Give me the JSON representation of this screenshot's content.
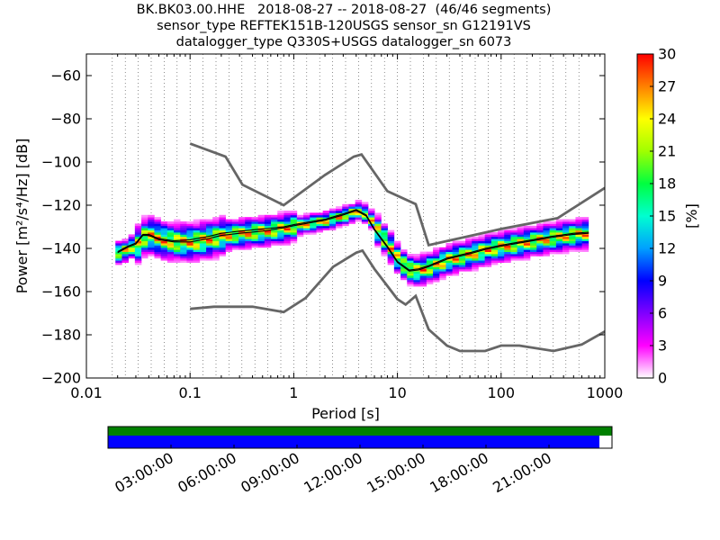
{
  "title_lines": [
    "BK.BK03.00.HHE   2018-08-27 -- 2018-08-27  (46/46 segments)",
    "sensor_type REFTEK151B-120USGS sensor_sn G12191VS",
    "datalogger_type Q330S+USGS datalogger_sn 6073"
  ],
  "chart_data": {
    "type": "heatmap",
    "xlabel": "Period [s]",
    "ylabel": "Power [m²/s⁴/Hz] [dB]",
    "xscale": "log",
    "xlim": [
      0.01,
      1000
    ],
    "ylim": [
      -200,
      -50
    ],
    "x_ticks": [
      {
        "value": 0.01,
        "label": "0.01"
      },
      {
        "value": 0.1,
        "label": "0.1"
      },
      {
        "value": 1,
        "label": "1"
      },
      {
        "value": 10,
        "label": "10"
      },
      {
        "value": 100,
        "label": "100"
      },
      {
        "value": 1000,
        "label": "1000"
      }
    ],
    "y_ticks": [
      {
        "value": -60,
        "label": "−60"
      },
      {
        "value": -80,
        "label": "−80"
      },
      {
        "value": -100,
        "label": "−100"
      },
      {
        "value": -120,
        "label": "−120"
      },
      {
        "value": -140,
        "label": "−140"
      },
      {
        "value": -160,
        "label": "−160"
      },
      {
        "value": -180,
        "label": "−180"
      },
      {
        "value": -200,
        "label": "−200"
      }
    ],
    "grid": "dotted vertical at period bin centers",
    "noise_models": [
      {
        "line_color": "#666666",
        "points": [
          [
            0.1,
            -91.5
          ],
          [
            0.22,
            -97.5
          ],
          [
            0.32,
            -110.5
          ],
          [
            0.8,
            -120
          ],
          [
            2,
            -106
          ],
          [
            3.8,
            -97.5
          ],
          [
            4.5,
            -96.5
          ],
          [
            8,
            -113.5
          ],
          [
            15,
            -119.5
          ],
          [
            20,
            -138.5
          ],
          [
            100,
            -131
          ],
          [
            350,
            -126
          ],
          [
            1000,
            -112
          ]
        ]
      },
      {
        "line_color": "#666666",
        "points": [
          [
            0.1,
            -168
          ],
          [
            0.17,
            -167
          ],
          [
            0.4,
            -167
          ],
          [
            0.8,
            -169.5
          ],
          [
            1.3,
            -163
          ],
          [
            2.4,
            -148.5
          ],
          [
            4,
            -142
          ],
          [
            4.6,
            -141
          ],
          [
            6,
            -149.5
          ],
          [
            10,
            -163.5
          ],
          [
            12,
            -166
          ],
          [
            15,
            -162
          ],
          [
            20,
            -177.5
          ],
          [
            30,
            -185
          ],
          [
            40,
            -187.5
          ],
          [
            70,
            -187.5
          ],
          [
            100,
            -185
          ],
          [
            150,
            -185
          ],
          [
            320,
            -187.5
          ],
          [
            600,
            -184.5
          ],
          [
            1000,
            -178.5
          ]
        ]
      }
    ],
    "mean_curve": {
      "line_color": "#000000",
      "points": [
        [
          0.02,
          -141.5
        ],
        [
          0.025,
          -139
        ],
        [
          0.03,
          -137.5
        ],
        [
          0.035,
          -133.5
        ],
        [
          0.04,
          -133.5
        ],
        [
          0.05,
          -135.5
        ],
        [
          0.07,
          -136.5
        ],
        [
          0.1,
          -136
        ],
        [
          0.15,
          -134.5
        ],
        [
          0.2,
          -133
        ],
        [
          0.3,
          -132
        ],
        [
          0.5,
          -131
        ],
        [
          0.8,
          -130
        ],
        [
          1.0,
          -129
        ],
        [
          1.5,
          -127.5
        ],
        [
          2.0,
          -126.5
        ],
        [
          3.0,
          -124
        ],
        [
          4.0,
          -122
        ],
        [
          5.0,
          -124.5
        ],
        [
          6.0,
          -131
        ],
        [
          8.0,
          -139
        ],
        [
          10,
          -146
        ],
        [
          13,
          -150
        ],
        [
          16,
          -149.5
        ],
        [
          20,
          -148
        ],
        [
          30,
          -144.5
        ],
        [
          50,
          -142
        ],
        [
          70,
          -140
        ],
        [
          100,
          -138.5
        ],
        [
          200,
          -136
        ],
        [
          300,
          -134.5
        ],
        [
          500,
          -133
        ],
        [
          700,
          -132.5
        ]
      ]
    },
    "mode_curve": {
      "line_color": "#000000",
      "points": [
        [
          0.02,
          -142
        ],
        [
          0.025,
          -139.5
        ],
        [
          0.03,
          -138
        ],
        [
          0.035,
          -134
        ],
        [
          0.04,
          -134
        ],
        [
          0.05,
          -136
        ],
        [
          0.07,
          -137
        ],
        [
          0.1,
          -137
        ],
        [
          0.15,
          -135.5
        ],
        [
          0.2,
          -134
        ],
        [
          0.3,
          -133
        ],
        [
          0.5,
          -132
        ],
        [
          0.8,
          -130.5
        ],
        [
          1.0,
          -129.5
        ],
        [
          1.5,
          -128
        ],
        [
          2.0,
          -127
        ],
        [
          3.0,
          -124.5
        ],
        [
          4.0,
          -122.5
        ],
        [
          5.0,
          -125
        ],
        [
          6.0,
          -131.5
        ],
        [
          8.0,
          -139.5
        ],
        [
          10,
          -146.5
        ],
        [
          13,
          -150.5
        ],
        [
          16,
          -150
        ],
        [
          20,
          -148.5
        ],
        [
          30,
          -145
        ],
        [
          50,
          -142.5
        ],
        [
          70,
          -140.5
        ],
        [
          100,
          -139
        ],
        [
          200,
          -136.5
        ],
        [
          300,
          -135
        ],
        [
          500,
          -133.5
        ],
        [
          700,
          -133
        ]
      ]
    },
    "density_bands": [
      {
        "t0": 0.018,
        "t1": 0.028,
        "center": -140,
        "spread": 3
      },
      {
        "t0": 0.028,
        "t1": 0.2,
        "center": -135,
        "spread": 5
      },
      {
        "t0": 0.2,
        "t1": 1.0,
        "center": -131,
        "spread": 4
      },
      {
        "t0": 1.0,
        "t1": 3.0,
        "center": -127,
        "spread": 2.5
      },
      {
        "t0": 3.0,
        "t1": 6.0,
        "center": -124,
        "spread": 2.5
      },
      {
        "t0": 6.0,
        "t1": 12,
        "center": -140,
        "spread": 4
      },
      {
        "t0": 12,
        "t1": 30,
        "center": -148,
        "spread": 4
      },
      {
        "t0": 30,
        "t1": 700,
        "center": -139,
        "spread": 4
      }
    ],
    "colorbar": {
      "label": "[%]",
      "min": 0,
      "max": 30,
      "ticks": [
        {
          "value": 0,
          "label": "0"
        },
        {
          "value": 3,
          "label": "3"
        },
        {
          "value": 6,
          "label": "6"
        },
        {
          "value": 9,
          "label": "9"
        },
        {
          "value": 12,
          "label": "12"
        },
        {
          "value": 15,
          "label": "15"
        },
        {
          "value": 18,
          "label": "18"
        },
        {
          "value": 21,
          "label": "21"
        },
        {
          "value": 24,
          "label": "24"
        },
        {
          "value": 27,
          "label": "27"
        },
        {
          "value": 30,
          "label": "30"
        }
      ],
      "colormap": [
        "#ffffff",
        "#ff00ff",
        "#8000ff",
        "#0000ff",
        "#00a0ff",
        "#00ffd0",
        "#00ff40",
        "#a0ff00",
        "#ffff00",
        "#ff8000",
        "#ff0000"
      ]
    },
    "coverage_timeline": {
      "top_bar_color": "#008000",
      "bottom_bar_color": "#0000ff",
      "coverage_fraction": 0.975,
      "tick_labels": [
        "03:00:00",
        "06:00:00",
        "09:00:00",
        "12:00:00",
        "15:00:00",
        "18:00:00",
        "21:00:00"
      ]
    }
  }
}
